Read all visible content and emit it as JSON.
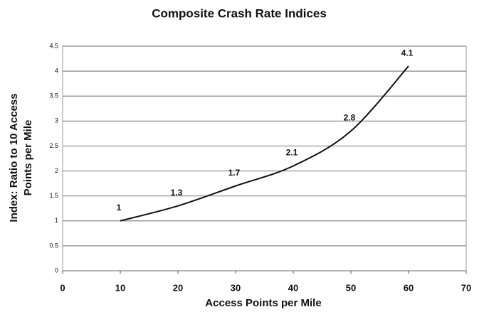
{
  "chart_data": {
    "type": "line",
    "title": "Composite Crash Rate Indices",
    "xlabel": "Access Points per Mile",
    "ylabel": [
      "Index:  Ratio to 10 Access",
      "Points per Mile"
    ],
    "x": [
      10,
      20,
      30,
      40,
      50,
      60
    ],
    "values": [
      1,
      1.3,
      1.7,
      2.1,
      2.8,
      4.1
    ],
    "color": "#111111",
    "smooth": true,
    "xlim": [
      0,
      70
    ],
    "xticks": [
      0,
      10,
      20,
      30,
      40,
      50,
      60,
      70
    ],
    "ylim": [
      0,
      4.5
    ],
    "yticks": [
      0,
      0.5,
      1,
      1.5,
      2,
      2.5,
      3,
      3.5,
      4,
      4.5
    ],
    "grid": true
  }
}
